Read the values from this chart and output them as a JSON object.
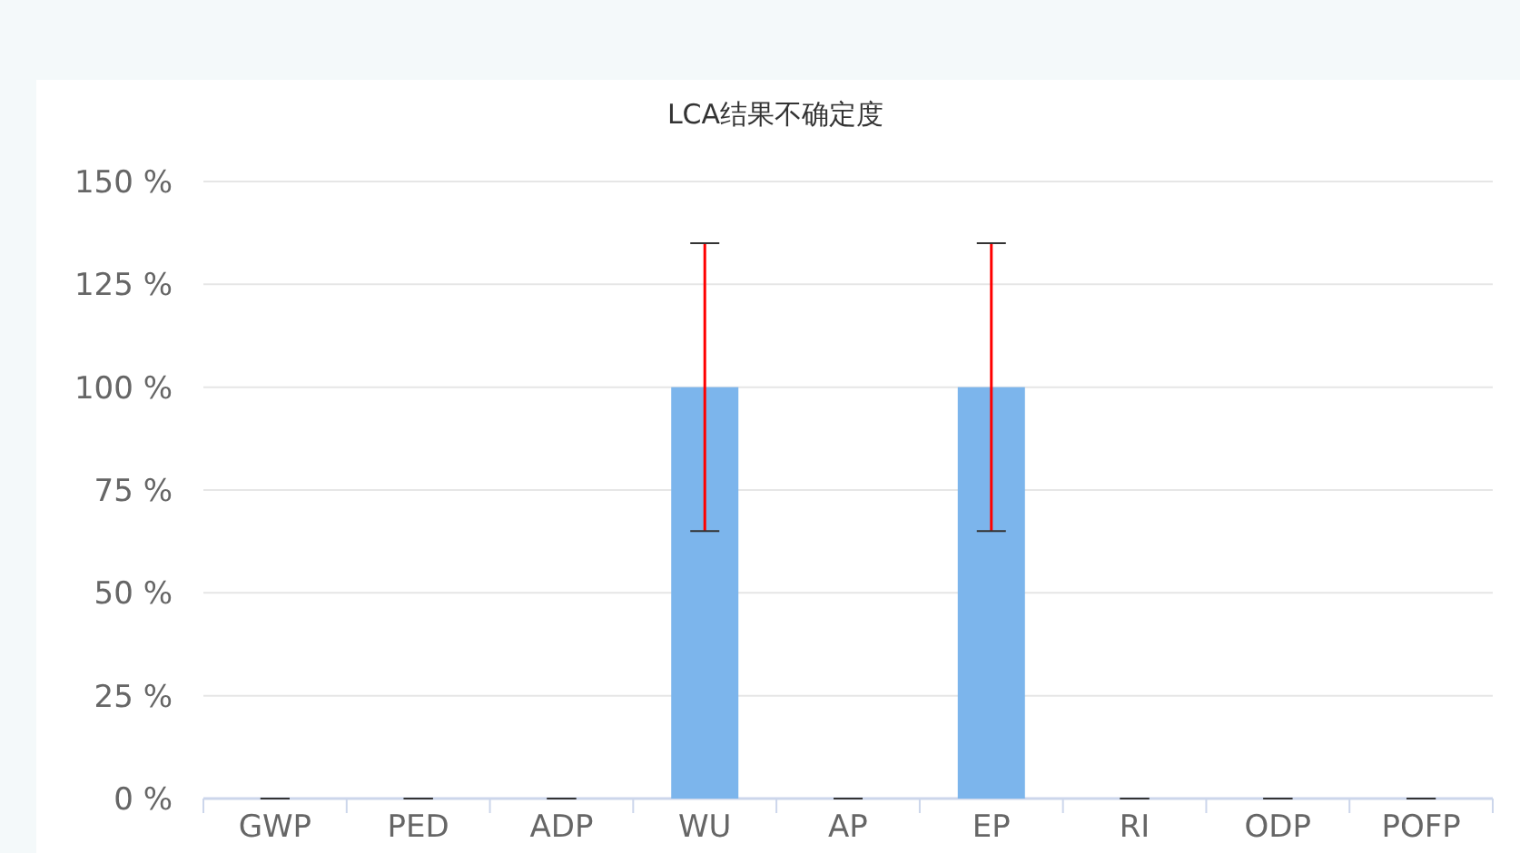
{
  "chart_data": {
    "type": "bar",
    "title": "LCA结果不确定度",
    "categories": [
      "GWP",
      "PED",
      "ADP",
      "WU",
      "AP",
      "EP",
      "RI",
      "ODP",
      "POFP"
    ],
    "values": [
      0,
      0,
      0,
      100,
      0,
      100,
      0,
      0,
      0
    ],
    "errors": [
      0,
      0,
      0,
      35,
      0,
      35,
      0,
      0,
      0
    ],
    "color": "#7cb5ec",
    "ylim": [
      0,
      150
    ],
    "yticks": [
      {
        "value": 0,
        "label": "0 %"
      },
      {
        "value": 25,
        "label": "25 %"
      },
      {
        "value": 50,
        "label": "50 %"
      },
      {
        "value": 75,
        "label": "75 %"
      },
      {
        "value": 100,
        "label": "100 %"
      },
      {
        "value": 125,
        "label": "125 %"
      },
      {
        "value": 150,
        "label": "150 %"
      }
    ],
    "grid": "y"
  }
}
